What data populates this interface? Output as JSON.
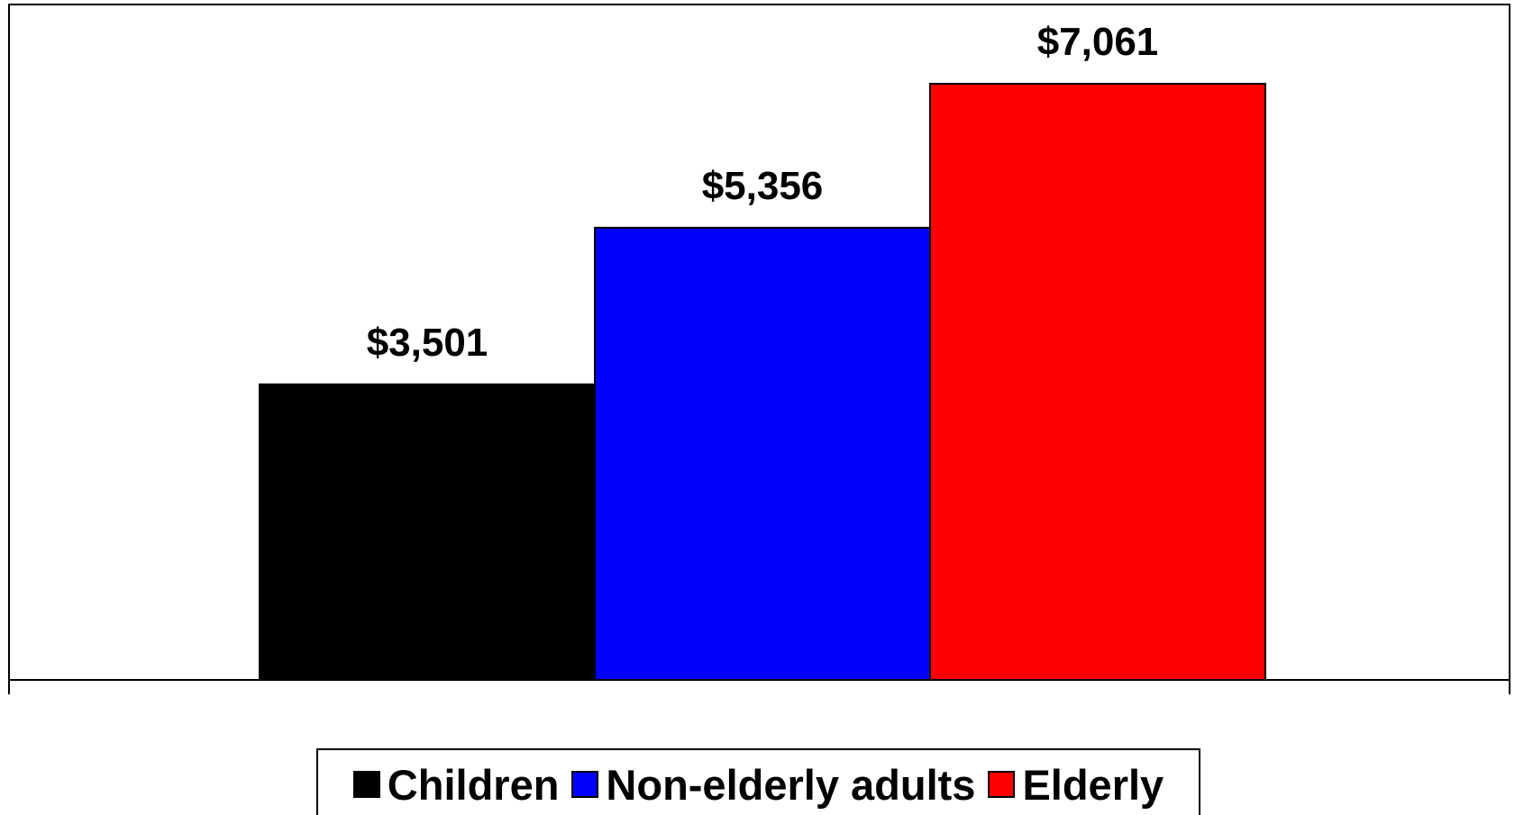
{
  "chart_data": {
    "type": "bar",
    "title": "",
    "xlabel": "",
    "ylabel": "",
    "ylim": [
      0,
      8000
    ],
    "grid": false,
    "legend_position": "bottom",
    "series": [
      {
        "name": "Children",
        "value": 3501,
        "label": "$3,501",
        "color": "#000000"
      },
      {
        "name": "Non-elderly adults",
        "value": 5356,
        "label": "$5,356",
        "color": "#0000ff"
      },
      {
        "name": "Elderly",
        "value": 7061,
        "label": "$7,061",
        "color": "#ff0000"
      }
    ]
  },
  "legend": {
    "items": [
      {
        "label": "Children",
        "color": "#000000"
      },
      {
        "label": "Non-elderly adults",
        "color": "#0000ff"
      },
      {
        "label": "Elderly",
        "color": "#ff0000"
      }
    ]
  }
}
